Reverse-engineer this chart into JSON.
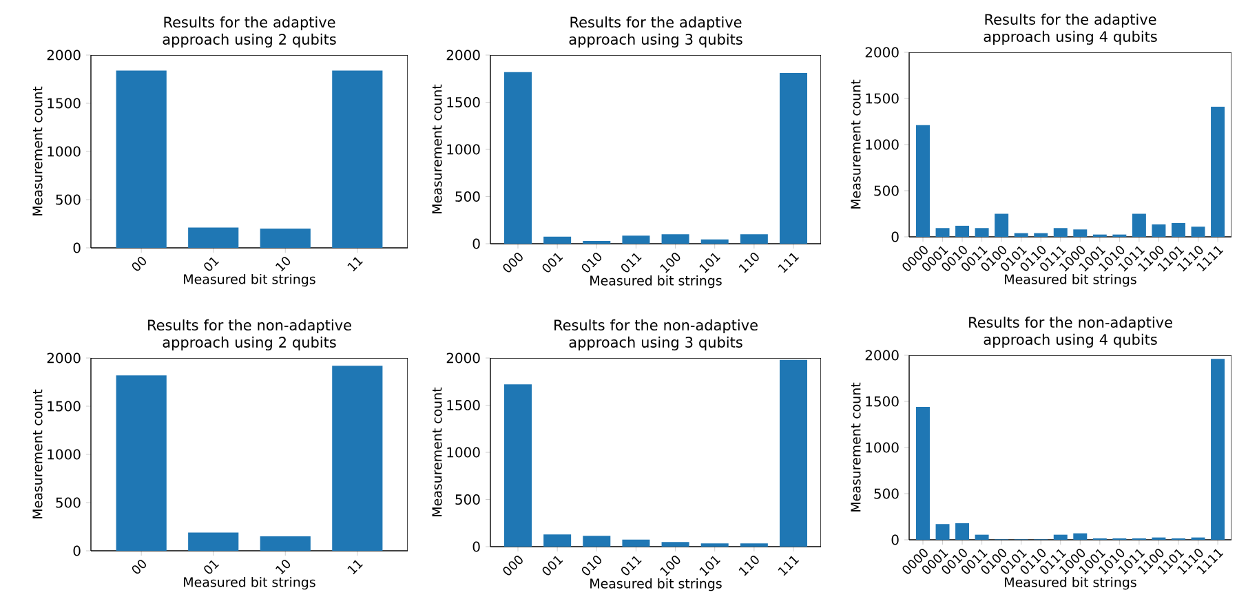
{
  "chart_data": [
    {
      "type": "bar",
      "title": "Results for the adaptive approach using 2 qubits",
      "xlabel": "Measured bit strings",
      "ylabel": "Measurement count",
      "categories": [
        "00",
        "01",
        "10",
        "11"
      ],
      "values": [
        1840,
        210,
        200,
        1840
      ],
      "color": "#1f77b4",
      "ylim": [
        0,
        2000
      ],
      "yticks": [
        0,
        500,
        1000,
        1500,
        2000
      ]
    },
    {
      "type": "bar",
      "title": "Results for the adaptive approach using 3 qubits",
      "xlabel": "Measured bit strings",
      "ylabel": "Measurement count",
      "categories": [
        "000",
        "001",
        "010",
        "011",
        "100",
        "101",
        "110",
        "111"
      ],
      "values": [
        1820,
        75,
        30,
        85,
        100,
        45,
        100,
        1810
      ],
      "color": "#1f77b4",
      "ylim": [
        0,
        2000
      ],
      "yticks": [
        0,
        500,
        1000,
        1500,
        2000
      ]
    },
    {
      "type": "bar",
      "title": "Results for the adaptive approach using 4 qubits",
      "xlabel": "Measured bit strings",
      "ylabel": "Measurement count",
      "categories": [
        "0000",
        "0001",
        "0010",
        "0011",
        "0100",
        "0101",
        "0110",
        "0111",
        "1000",
        "1001",
        "1010",
        "1011",
        "1100",
        "1101",
        "1110",
        "1111"
      ],
      "values": [
        1210,
        95,
        120,
        95,
        250,
        40,
        40,
        95,
        80,
        25,
        25,
        250,
        135,
        150,
        110,
        1410
      ],
      "color": "#1f77b4",
      "ylim": [
        0,
        2000
      ],
      "yticks": [
        0,
        500,
        1000,
        1500,
        2000
      ]
    },
    {
      "type": "bar",
      "title": "Results for the non-adaptive approach using 2 qubits",
      "xlabel": "Measured bit strings",
      "ylabel": "Measurement count",
      "categories": [
        "00",
        "01",
        "10",
        "11"
      ],
      "values": [
        1820,
        190,
        150,
        1920
      ],
      "color": "#1f77b4",
      "ylim": [
        0,
        2000
      ],
      "yticks": [
        0,
        500,
        1000,
        1500,
        2000
      ]
    },
    {
      "type": "bar",
      "title": "Results for the non-adaptive approach using 3 qubits",
      "xlabel": "Measured bit strings",
      "ylabel": "Measurement count",
      "categories": [
        "000",
        "001",
        "010",
        "011",
        "100",
        "101",
        "110",
        "111"
      ],
      "values": [
        1720,
        130,
        115,
        75,
        50,
        35,
        35,
        1980
      ],
      "color": "#1f77b4",
      "ylim": [
        0,
        2000
      ],
      "yticks": [
        0,
        500,
        1000,
        1500,
        2000
      ]
    },
    {
      "type": "bar",
      "title": "Results for the non-adaptive approach using 4 qubits",
      "xlabel": "Measured bit strings",
      "ylabel": "Measurement count",
      "categories": [
        "0000",
        "0001",
        "0010",
        "0011",
        "0100",
        "0101",
        "0110",
        "0111",
        "1000",
        "1001",
        "1010",
        "1011",
        "1100",
        "1101",
        "1110",
        "1111"
      ],
      "values": [
        1440,
        170,
        180,
        55,
        5,
        5,
        5,
        55,
        70,
        15,
        15,
        15,
        25,
        15,
        25,
        1960
      ],
      "color": "#1f77b4",
      "ylim": [
        0,
        2000
      ],
      "yticks": [
        0,
        500,
        1000,
        1500,
        2000
      ]
    }
  ]
}
